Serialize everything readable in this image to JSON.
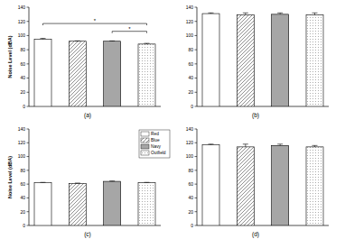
{
  "chart_data": [
    {
      "type": "bar",
      "title": "(a)",
      "ylabel": "Noise Level (dBA)",
      "categories": [
        null
      ],
      "ylim": [
        0,
        140
      ],
      "yticks": [
        0,
        20,
        40,
        60,
        80,
        100,
        120,
        140
      ],
      "tick_labels": "y",
      "series": [
        {
          "color": "#ffffff",
          "marker": "none",
          "values": [
            95
          ],
          "errors": [
            1
          ]
        },
        {
          "color": "#ffffff",
          "marker": "hatch",
          "values": [
            92
          ],
          "errors": [
            0.5
          ]
        },
        {
          "color": "#a6a6a6",
          "marker": "solid",
          "values": [
            92
          ],
          "errors": [
            0.5
          ]
        },
        {
          "color": "#ffffff",
          "marker": "dots",
          "values": [
            88
          ],
          "errors": [
            1
          ]
        }
      ],
      "annotations": [
        {
          "text": "*",
          "from": 0,
          "to": 3,
          "y": 117
        },
        {
          "text": "*",
          "from": 2,
          "to": 3,
          "y": 106
        }
      ]
    },
    {
      "type": "bar",
      "title": "(b)",
      "categories": [
        null
      ],
      "ylim": [
        0,
        140
      ],
      "yticks": [
        0,
        20,
        40,
        60,
        80,
        100,
        120,
        140
      ],
      "tick_labels": "y",
      "series": [
        {
          "color": "#ffffff",
          "marker": "none",
          "values": [
            131
          ],
          "errors": [
            1
          ]
        },
        {
          "color": "#ffffff",
          "marker": "hatch",
          "values": [
            129
          ],
          "errors": [
            3
          ]
        },
        {
          "color": "#a6a6a6",
          "marker": "solid",
          "values": [
            130
          ],
          "errors": [
            2
          ]
        },
        {
          "color": "#ffffff",
          "marker": "dots",
          "values": [
            129
          ],
          "errors": [
            3
          ]
        }
      ]
    },
    {
      "type": "bar",
      "title": "(c)",
      "ylabel": "Noise Level (dBA)",
      "categories": [
        null
      ],
      "ylim": [
        0,
        140
      ],
      "yticks": [
        0,
        20,
        40,
        60,
        80,
        100,
        120,
        140
      ],
      "tick_labels": "y",
      "legend": "upper right",
      "series": [
        {
          "name": "Red",
          "color": "#ffffff",
          "marker": "none",
          "values": [
            62
          ],
          "errors": [
            0.5
          ]
        },
        {
          "name": "Blue",
          "color": "#ffffff",
          "marker": "hatch",
          "values": [
            61
          ],
          "errors": [
            0.5
          ]
        },
        {
          "name": "Navy",
          "color": "#a6a6a6",
          "marker": "solid",
          "values": [
            64
          ],
          "errors": [
            0.5
          ]
        },
        {
          "name": "Outfield",
          "color": "#ffffff",
          "marker": "dots",
          "values": [
            62
          ],
          "errors": [
            0.5
          ]
        }
      ]
    },
    {
      "type": "bar",
      "title": "(d)",
      "categories": [
        null
      ],
      "ylim": [
        0,
        140
      ],
      "yticks": [
        0,
        20,
        40,
        60,
        80,
        100,
        120,
        140
      ],
      "tick_labels": "y",
      "series": [
        {
          "color": "#ffffff",
          "marker": "none",
          "values": [
            117
          ],
          "errors": [
            1
          ]
        },
        {
          "color": "#ffffff",
          "marker": "hatch",
          "values": [
            114
          ],
          "errors": [
            4
          ]
        },
        {
          "color": "#a6a6a6",
          "marker": "solid",
          "values": [
            116
          ],
          "errors": [
            2
          ]
        },
        {
          "color": "#ffffff",
          "marker": "dots",
          "values": [
            114
          ],
          "errors": [
            2
          ]
        }
      ]
    }
  ]
}
